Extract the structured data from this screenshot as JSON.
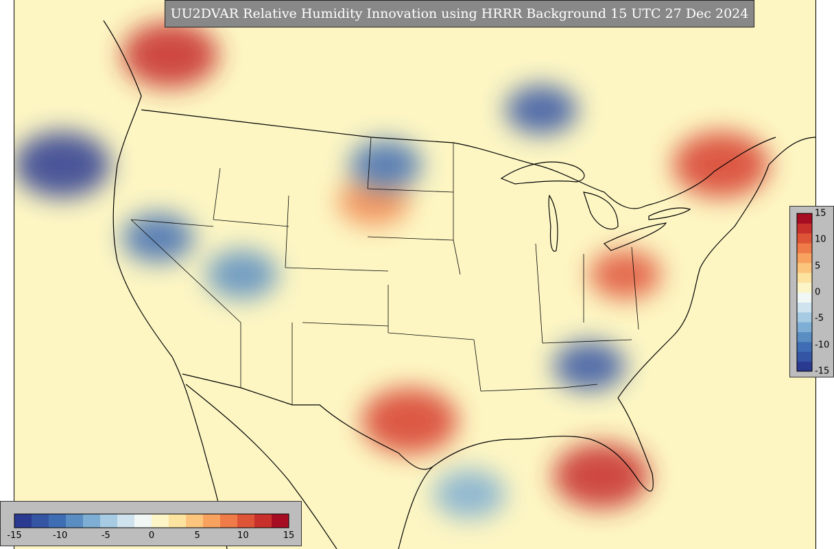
{
  "title": "UU2DVAR Relative Humidity Innovation using HRRR Background 15 UTC 27 Dec 2024",
  "colorbar": {
    "min": -15,
    "max": 15,
    "ticks": [
      "-15",
      "-10",
      "-5",
      "0",
      "5",
      "10",
      "15"
    ],
    "tick_values": [
      -15,
      -10,
      -5,
      0,
      5,
      10,
      15
    ],
    "colors": [
      "#2b3a91",
      "#3454a4",
      "#3f6db3",
      "#5a8ec2",
      "#7eaed3",
      "#a6cbe2",
      "#cfe3ee",
      "#f1f7f4",
      "#fbf5c8",
      "#fde3a0",
      "#fcc57e",
      "#f8a25f",
      "#ee7b48",
      "#dd5437",
      "#c7302b",
      "#a70d22"
    ]
  },
  "map": {
    "background_color": "#fdf6c3",
    "regions": [
      {
        "color": "#c62a29",
        "intensity": "strong-positive",
        "lon": -117,
        "lat": 50
      },
      {
        "color": "#d73c2e",
        "intensity": "strong-positive",
        "lon": -71,
        "lat": 44
      },
      {
        "color": "#c62a29",
        "intensity": "strong-positive",
        "lon": -81,
        "lat": 27
      },
      {
        "color": "#d73c2e",
        "intensity": "strong-positive",
        "lon": -97,
        "lat": 30
      },
      {
        "color": "#e0523a",
        "intensity": "positive",
        "lon": -79,
        "lat": 38
      },
      {
        "color": "#f08a55",
        "intensity": "positive",
        "lon": -100,
        "lat": 42
      },
      {
        "color": "#3f6db3",
        "intensity": "negative",
        "lon": -118,
        "lat": 40
      },
      {
        "color": "#3f6db3",
        "intensity": "negative",
        "lon": -99,
        "lat": 44
      },
      {
        "color": "#2b3a91",
        "intensity": "strong-negative",
        "lon": -126,
        "lat": 44
      },
      {
        "color": "#3454a4",
        "intensity": "negative",
        "lon": -86,
        "lat": 47
      },
      {
        "color": "#5a8ec2",
        "intensity": "negative",
        "lon": -111,
        "lat": 38
      },
      {
        "color": "#7eaed3",
        "intensity": "weak-negative",
        "lon": -92,
        "lat": 26
      },
      {
        "color": "#3454a4",
        "intensity": "negative",
        "lon": -82,
        "lat": 33
      }
    ]
  }
}
